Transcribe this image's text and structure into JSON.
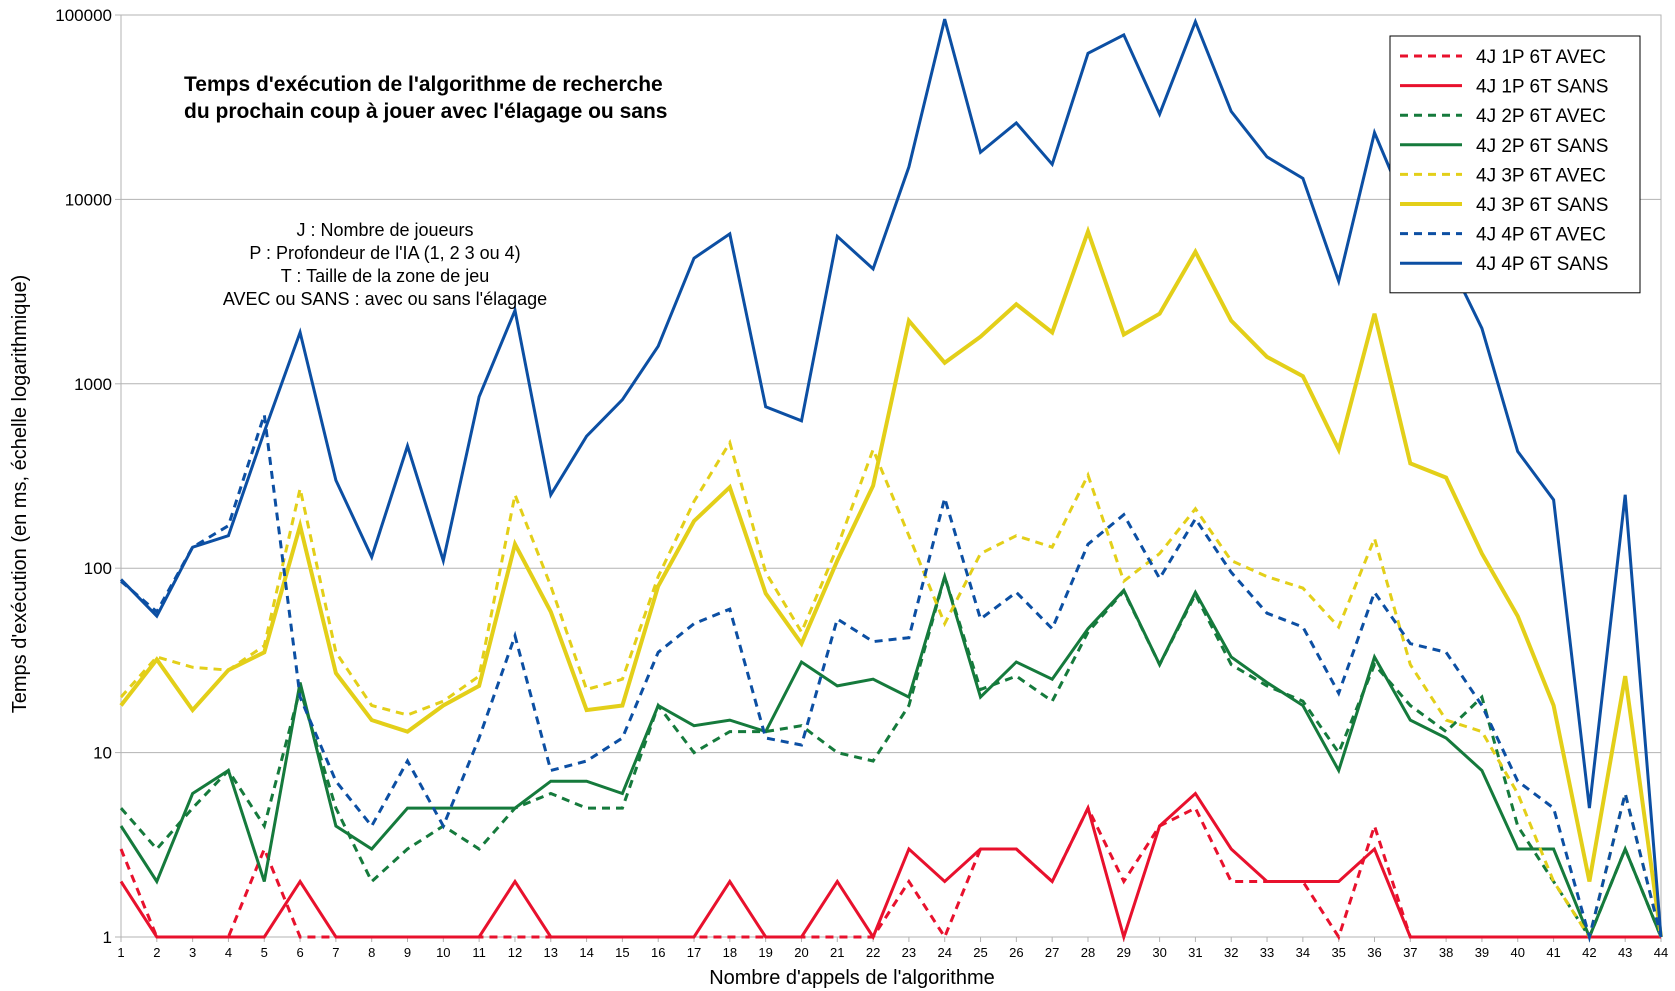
{
  "chart_data": {
    "type": "line",
    "title": [
      "Temps d'exécution de l'algorithme de recherche",
      "du prochain coup à jouer avec l'élagage ou sans"
    ],
    "annotation": [
      "J : Nombre de joueurs",
      "P : Profondeur de l'IA (1, 2 3 ou 4)",
      "T : Taille de la zone de jeu",
      "AVEC ou SANS : avec ou sans l'élagage"
    ],
    "xlabel": "Nombre d'appels de l'algorithme",
    "ylabel": "Temps d'exécution (en ms, échelle logarithmique)",
    "y_scale": "log",
    "ylim": [
      1,
      100000
    ],
    "y_ticks": [
      1,
      10,
      100,
      1000,
      10000,
      100000
    ],
    "grid": "horizontal",
    "legend_position": "top-right",
    "x": [
      1,
      2,
      3,
      4,
      5,
      6,
      7,
      8,
      9,
      10,
      11,
      12,
      13,
      14,
      15,
      16,
      17,
      18,
      19,
      20,
      21,
      22,
      23,
      24,
      25,
      26,
      27,
      28,
      29,
      30,
      31,
      32,
      33,
      34,
      35,
      36,
      37,
      38,
      39,
      40,
      41,
      42,
      43,
      44
    ],
    "series": [
      {
        "name": "4J 1P 6T AVEC",
        "color": "#e8112d",
        "dashed": true,
        "width": 3,
        "values": [
          3,
          1,
          1,
          1,
          3,
          1,
          1,
          1,
          1,
          1,
          1,
          1,
          1,
          1,
          1,
          1,
          1,
          1,
          1,
          1,
          1,
          1,
          2,
          1,
          3,
          3,
          2,
          5,
          2,
          4,
          5,
          2,
          2,
          2,
          1,
          4,
          1,
          1,
          1,
          1,
          1,
          1,
          1,
          1
        ]
      },
      {
        "name": "4J 1P 6T SANS",
        "color": "#e8112d",
        "dashed": false,
        "width": 3,
        "values": [
          2,
          1,
          1,
          1,
          1,
          2,
          1,
          1,
          1,
          1,
          1,
          2,
          1,
          1,
          1,
          1,
          1,
          2,
          1,
          1,
          2,
          1,
          3,
          2,
          3,
          3,
          2,
          5,
          1,
          4,
          6,
          3,
          2,
          2,
          2,
          3,
          1,
          1,
          1,
          1,
          1,
          1,
          1,
          1
        ]
      },
      {
        "name": "4J 2P 6T AVEC",
        "color": "#157a3c",
        "dashed": true,
        "width": 3,
        "values": [
          5,
          3,
          5,
          8,
          4,
          22,
          5,
          2,
          3,
          4,
          3,
          5,
          6,
          5,
          5,
          18,
          10,
          13,
          13,
          14,
          10,
          9,
          18,
          90,
          22,
          26,
          19,
          45,
          75,
          30,
          72,
          30,
          23,
          19,
          10,
          30,
          18,
          13,
          20,
          4,
          2,
          1,
          3,
          1
        ]
      },
      {
        "name": "4J 2P 6T SANS",
        "color": "#157a3c",
        "dashed": false,
        "width": 3,
        "values": [
          4,
          2,
          6,
          8,
          2,
          24,
          4,
          3,
          5,
          5,
          5,
          5,
          7,
          7,
          6,
          18,
          14,
          15,
          13,
          31,
          23,
          25,
          20,
          90,
          20,
          31,
          25,
          47,
          76,
          30,
          74,
          33,
          24,
          18,
          8,
          33,
          15,
          12,
          8,
          3,
          3,
          1,
          3,
          1
        ]
      },
      {
        "name": "4J 3P 6T AVEC",
        "color": "#e3cf19",
        "dashed": true,
        "width": 3,
        "values": [
          20,
          33,
          29,
          28,
          38,
          270,
          35,
          18,
          16,
          19,
          26,
          250,
          80,
          22,
          25,
          90,
          230,
          480,
          95,
          45,
          130,
          440,
          150,
          50,
          120,
          150,
          130,
          320,
          85,
          120,
          210,
          110,
          90,
          78,
          48,
          145,
          30,
          15,
          13,
          6,
          2,
          1,
          6,
          1
        ]
      },
      {
        "name": "4J 3P 6T SANS",
        "color": "#e3cf19",
        "dashed": false,
        "width": 4,
        "values": [
          18,
          32,
          17,
          28,
          35,
          170,
          27,
          15,
          13,
          18,
          23,
          135,
          58,
          17,
          18,
          80,
          180,
          275,
          73,
          39,
          110,
          280,
          2200,
          1300,
          1800,
          2700,
          1900,
          6700,
          1850,
          2400,
          5200,
          2200,
          1400,
          1100,
          440,
          2400,
          370,
          310,
          120,
          55,
          18,
          2,
          26,
          1
        ]
      },
      {
        "name": "4J 4P 6T AVEC",
        "color": "#0c4fa3",
        "dashed": true,
        "width": 3,
        "values": [
          85,
          58,
          130,
          170,
          680,
          20,
          7,
          4,
          9,
          4,
          12,
          43,
          8,
          9,
          12,
          35,
          50,
          60,
          12,
          11,
          53,
          40,
          42,
          240,
          53,
          74,
          47,
          135,
          195,
          88,
          185,
          95,
          57,
          48,
          21,
          74,
          39,
          35,
          18,
          7,
          5,
          1,
          6,
          1
        ]
      },
      {
        "name": "4J 4P 6T SANS",
        "color": "#0c4fa3",
        "dashed": false,
        "width": 3,
        "values": [
          87,
          55,
          130,
          150,
          550,
          1900,
          300,
          115,
          460,
          110,
          850,
          2500,
          250,
          520,
          820,
          1600,
          4800,
          6500,
          750,
          630,
          6300,
          4200,
          15000,
          95000,
          18000,
          26000,
          15500,
          62000,
          78000,
          29000,
          92000,
          30000,
          17000,
          13000,
          3600,
          23000,
          8000,
          5000,
          2000,
          430,
          235,
          5,
          250,
          1
        ]
      }
    ]
  }
}
